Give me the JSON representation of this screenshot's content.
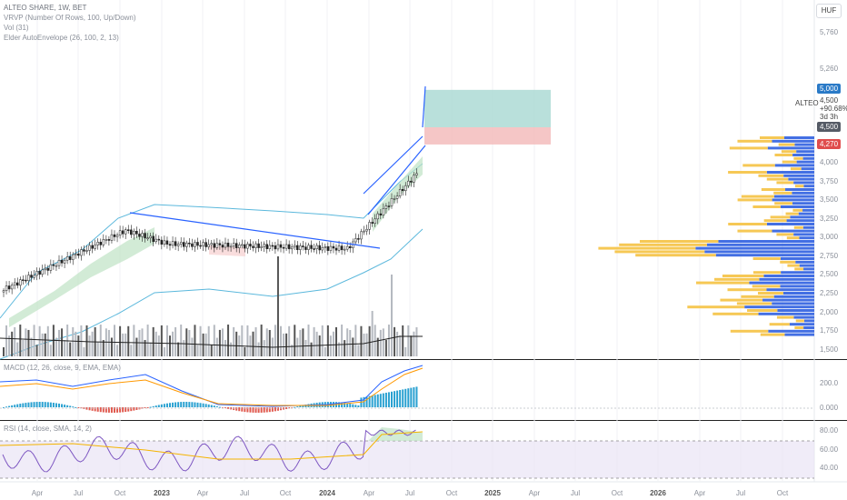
{
  "header": {
    "title": "ALTEO SHARE, 1W, BET",
    "indicators": [
      "VRVP (Number Of Rows, 100, Up/Down)",
      "Vol (31)",
      "Elder AutoEnvelope (26, 100, 2, 13)"
    ],
    "currency": "HUF"
  },
  "price_axis": {
    "ticks": [
      "5,760",
      "5,260",
      "5,000",
      "4,500",
      "4,270",
      "4,000",
      "3,750",
      "3,500",
      "3,250",
      "3,000",
      "2,750",
      "2,500",
      "2,250",
      "2,000",
      "1,750",
      "1,500"
    ]
  },
  "tags": {
    "target": "5,000",
    "current": "4,500",
    "stop": "4,270"
  },
  "symbol_info": {
    "symbol": "ALTEO",
    "price": "4,500",
    "change": "+90.68%",
    "countdown": "3d 3h"
  },
  "macd": {
    "label": "MACD (12, 26, close, 9, EMA, EMA)",
    "ticks": [
      "200.0",
      "0.000"
    ]
  },
  "rsi": {
    "label": "RSI (14, close, SMA, 14, 2)",
    "ticks": [
      "80.00",
      "60.00",
      "40.00"
    ]
  },
  "time_axis": {
    "labels": [
      {
        "text": "Apr",
        "bold": false
      },
      {
        "text": "Jul",
        "bold": false
      },
      {
        "text": "Oct",
        "bold": false
      },
      {
        "text": "2023",
        "bold": true
      },
      {
        "text": "Apr",
        "bold": false
      },
      {
        "text": "Jul",
        "bold": false
      },
      {
        "text": "Oct",
        "bold": false
      },
      {
        "text": "2024",
        "bold": true
      },
      {
        "text": "Apr",
        "bold": false
      },
      {
        "text": "Jul",
        "bold": false
      },
      {
        "text": "Oct",
        "bold": false
      },
      {
        "text": "2025",
        "bold": true
      },
      {
        "text": "Apr",
        "bold": false
      },
      {
        "text": "Jul",
        "bold": false
      },
      {
        "text": "Oct",
        "bold": false
      },
      {
        "text": "2026",
        "bold": true
      },
      {
        "text": "Apr",
        "bold": false
      },
      {
        "text": "Jul",
        "bold": false
      },
      {
        "text": "Oct",
        "bold": false
      }
    ]
  },
  "colors": {
    "up": "#26a69a",
    "down": "#ef5350",
    "candle": "#222222",
    "trendline": "#2962ff",
    "envelope": "#5bb8dc",
    "vp_up": "#2f5fe0",
    "vp_down": "#f5c242",
    "target_zone": "#a8d8d2",
    "stop_zone": "#f2b8b8",
    "tag_blue": "#2a7ac7",
    "tag_red": "#e04d4d",
    "tag_grey": "#555b66"
  }
}
